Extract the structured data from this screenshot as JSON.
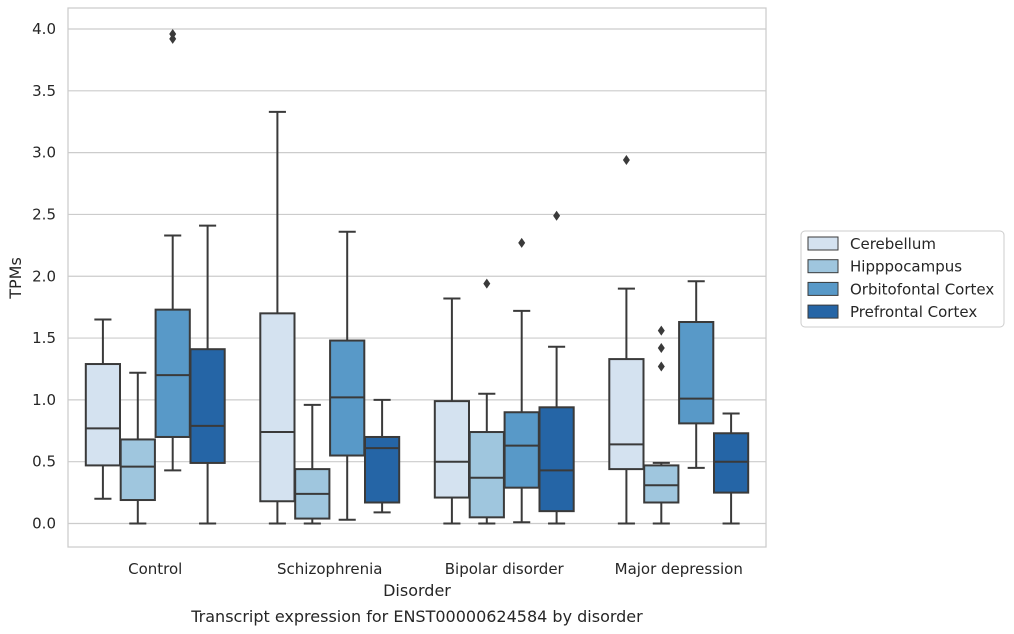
{
  "chart_data": {
    "type": "box",
    "xlabel": "Disorder",
    "ylabel": "TPMs",
    "caption": "Transcript expression for ENST00000624584 by disorder",
    "ylim": [
      -0.19,
      4.17
    ],
    "yticks": [
      "0.0",
      "0.5",
      "1.0",
      "1.5",
      "2.0",
      "2.5",
      "3.0",
      "3.5",
      "4.0"
    ],
    "grid": "horizontal",
    "legend_position": "right",
    "categories": [
      "Control",
      "Schizophrenia",
      "Bipolar disorder",
      "Major depression"
    ],
    "series": [
      {
        "name": "Cerebellum",
        "color": "#d4e2f0",
        "boxes": [
          {
            "whislo": 0.2,
            "q1": 0.47,
            "med": 0.77,
            "q3": 1.29,
            "whishi": 1.65,
            "fliers": []
          },
          {
            "whislo": 0.0,
            "q1": 0.18,
            "med": 0.74,
            "q3": 1.7,
            "whishi": 3.33,
            "fliers": []
          },
          {
            "whislo": 0.0,
            "q1": 0.21,
            "med": 0.5,
            "q3": 0.99,
            "whishi": 1.82,
            "fliers": []
          },
          {
            "whislo": 0.0,
            "q1": 0.44,
            "med": 0.64,
            "q3": 1.33,
            "whishi": 1.9,
            "fliers": [
              2.94
            ]
          }
        ]
      },
      {
        "name": "Hipppocampus",
        "color": "#9fc6de",
        "boxes": [
          {
            "whislo": 0.0,
            "q1": 0.19,
            "med": 0.46,
            "q3": 0.68,
            "whishi": 1.22,
            "fliers": []
          },
          {
            "whislo": 0.0,
            "q1": 0.04,
            "med": 0.24,
            "q3": 0.44,
            "whishi": 0.96,
            "fliers": []
          },
          {
            "whislo": 0.0,
            "q1": 0.05,
            "med": 0.37,
            "q3": 0.74,
            "whishi": 1.05,
            "fliers": [
              1.94
            ]
          },
          {
            "whislo": 0.0,
            "q1": 0.17,
            "med": 0.31,
            "q3": 0.47,
            "whishi": 0.49,
            "fliers": [
              1.27,
              1.42,
              1.56
            ]
          }
        ]
      },
      {
        "name": "Orbitofontal Cortex",
        "color": "#5899c8",
        "boxes": [
          {
            "whislo": 0.43,
            "q1": 0.7,
            "med": 1.2,
            "q3": 1.73,
            "whishi": 2.33,
            "fliers": []
          },
          {
            "whislo": 0.03,
            "q1": 0.55,
            "med": 1.02,
            "q3": 1.48,
            "whishi": 2.36,
            "fliers": []
          },
          {
            "whislo": 0.01,
            "q1": 0.29,
            "med": 0.63,
            "q3": 0.9,
            "whishi": 1.72,
            "fliers": [
              2.27
            ]
          },
          {
            "whislo": 0.45,
            "q1": 0.81,
            "med": 1.01,
            "q3": 1.63,
            "whishi": 1.96,
            "fliers": []
          }
        ]
      },
      {
        "name": "Prefrontal Cortex",
        "color": "#2565a6",
        "boxes": [
          {
            "whislo": 0.0,
            "q1": 0.49,
            "med": 0.79,
            "q3": 1.41,
            "whishi": 2.41,
            "fliers": []
          },
          {
            "whislo": 0.09,
            "q1": 0.17,
            "med": 0.61,
            "q3": 0.7,
            "whishi": 1.0,
            "fliers": []
          },
          {
            "whislo": 0.0,
            "q1": 0.1,
            "med": 0.43,
            "q3": 0.94,
            "whishi": 1.43,
            "fliers": [
              2.49
            ]
          },
          {
            "whislo": 0.0,
            "q1": 0.25,
            "med": 0.5,
            "q3": 0.73,
            "whishi": 0.89,
            "fliers": []
          }
        ]
      }
    ]
  },
  "outliers_control_orbitofontal": [
    3.92,
    3.96
  ]
}
